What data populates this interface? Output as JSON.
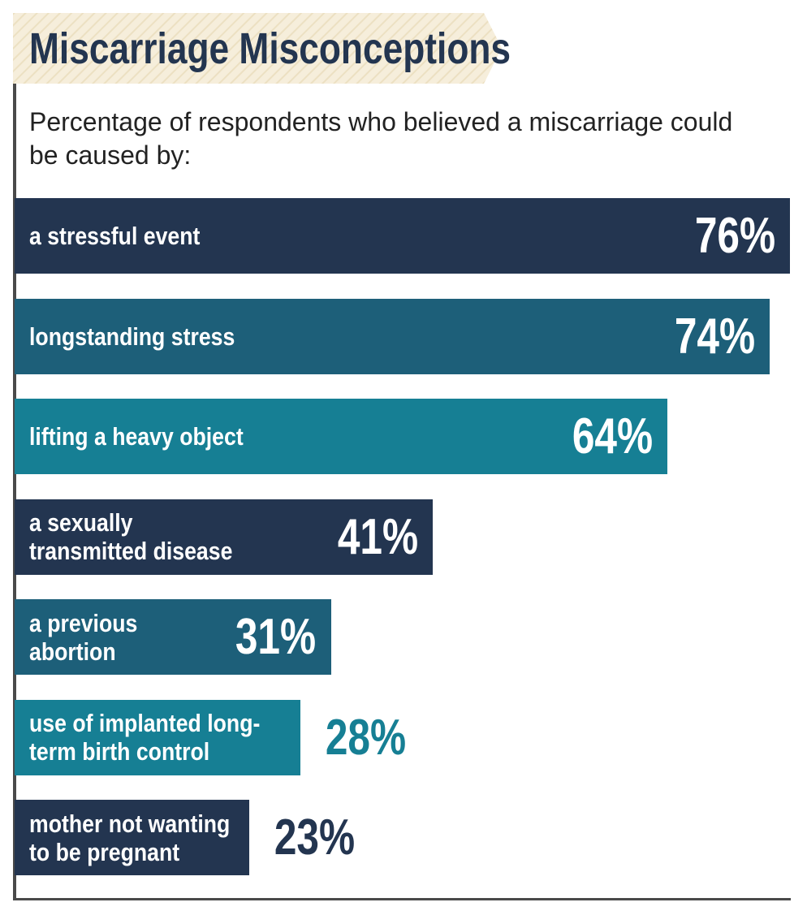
{
  "chart_data": {
    "type": "bar",
    "orientation": "horizontal",
    "title": "Miscarriage Misconceptions",
    "subtitle": "Percentage of respondents who believed a miscarriage could be caused by:",
    "xlim": [
      0,
      76
    ],
    "grid": false,
    "categories": [
      [
        "a stressful event"
      ],
      [
        "longstanding stress"
      ],
      [
        "lifting a heavy object"
      ],
      [
        "a sexually",
        "transmitted disease"
      ],
      [
        "a previous",
        "abortion"
      ],
      [
        "use of implanted long-",
        "term birth control"
      ],
      [
        "mother not wanting",
        "to be pregnant"
      ]
    ],
    "values": [
      76,
      74,
      64,
      41,
      31,
      28,
      23
    ],
    "value_labels": [
      "76%",
      "74%",
      "64%",
      "41%",
      "31%",
      "28%",
      "23%"
    ],
    "colors": [
      "#233550",
      "#1d5f79",
      "#167f94",
      "#233550",
      "#1d5f79",
      "#167f94",
      "#233550"
    ],
    "value_text_colors": [
      "#ffffff",
      "#ffffff",
      "#ffffff",
      "#ffffff",
      "#ffffff",
      "#167f94",
      "#233550"
    ]
  },
  "banner_color": "#f5ecd6",
  "axis_color": "#4a4a4a"
}
